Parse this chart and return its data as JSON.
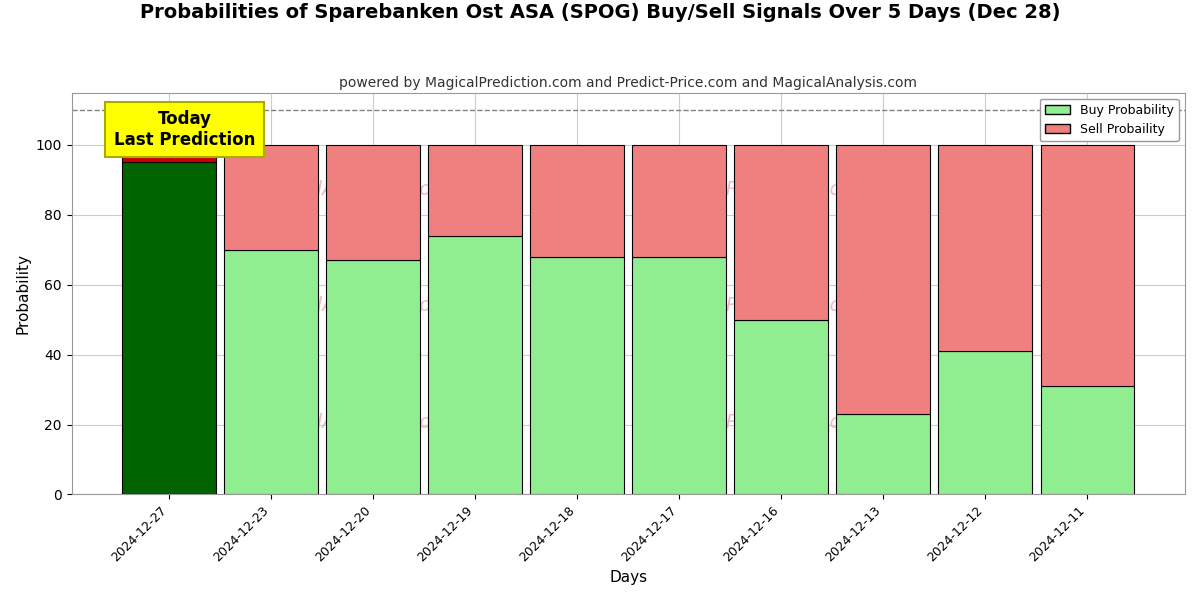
{
  "title": "Probabilities of Sparebanken Ost ASA (SPOG) Buy/Sell Signals Over 5 Days (Dec 28)",
  "subtitle": "powered by MagicalPrediction.com and Predict-Price.com and MagicalAnalysis.com",
  "xlabel": "Days",
  "ylabel": "Probability",
  "categories": [
    "2024-12-27",
    "2024-12-23",
    "2024-12-20",
    "2024-12-19",
    "2024-12-18",
    "2024-12-17",
    "2024-12-16",
    "2024-12-13",
    "2024-12-12",
    "2024-12-11"
  ],
  "buy_values": [
    95,
    70,
    67,
    74,
    68,
    68,
    50,
    23,
    41,
    31
  ],
  "sell_values": [
    5,
    30,
    33,
    26,
    32,
    32,
    50,
    77,
    59,
    69
  ],
  "buy_color_today": "#006400",
  "sell_color_today": "#cc0000",
  "buy_color_normal": "#90EE90",
  "sell_color_normal": "#F08080",
  "bar_edge_color": "#000000",
  "bar_edge_width": 0.8,
  "ylim": [
    0,
    115
  ],
  "yticks": [
    0,
    20,
    40,
    60,
    80,
    100
  ],
  "dashed_line_y": 110,
  "annotation_text": "Today\nLast Prediction",
  "annotation_bg_color": "#FFFF00",
  "annotation_text_color": "#000000",
  "legend_buy_label": "Buy Probability",
  "legend_sell_label": "Sell Probaility",
  "grid_color": "#cccccc",
  "watermark_color": "#e89898",
  "background_color": "#ffffff",
  "title_fontsize": 14,
  "subtitle_fontsize": 10,
  "axis_label_fontsize": 11,
  "bar_width": 0.92
}
